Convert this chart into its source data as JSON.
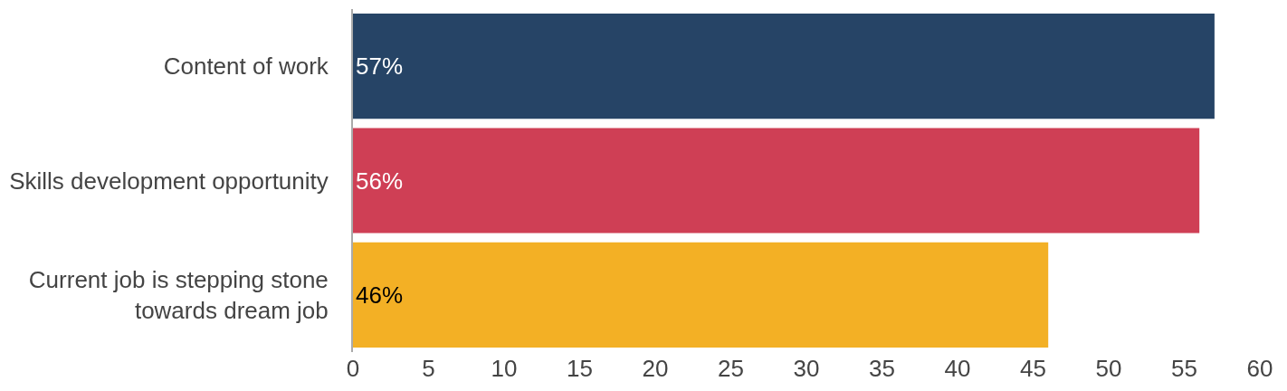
{
  "chart_data": {
    "type": "bar",
    "orientation": "horizontal",
    "categories": [
      "Content of work",
      "Skills development opportunity",
      "Current job is stepping stone towards dream job"
    ],
    "values": [
      57,
      56,
      46
    ],
    "value_labels": [
      "57%",
      "56%",
      "46%"
    ],
    "colors": [
      "#264466",
      "#cf3f55",
      "#f3b025"
    ],
    "xlim": [
      0,
      60
    ],
    "xticks": [
      0,
      5,
      10,
      15,
      20,
      25,
      30,
      35,
      40,
      45,
      50,
      55,
      60
    ],
    "grid": false
  }
}
